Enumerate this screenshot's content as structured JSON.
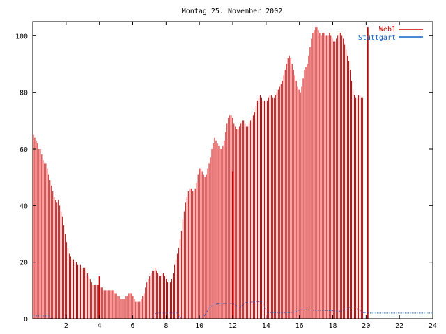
{
  "chart_data": {
    "type": "bar",
    "title": "Montag 25. November 2002",
    "xlabel": "",
    "ylabel": "",
    "xlim": [
      0,
      24
    ],
    "ylim": [
      0,
      105
    ],
    "xticks": [
      2,
      4,
      6,
      8,
      10,
      12,
      14,
      16,
      18,
      20,
      22,
      24
    ],
    "yticks": [
      0,
      20,
      40,
      60,
      80,
      100
    ],
    "grid": false,
    "legend_position": "top-right",
    "series": [
      {
        "name": "Web1",
        "color": "#d40000",
        "style": "impulses",
        "x_step_hours": 0.083,
        "values": [
          65,
          64,
          63,
          62,
          60,
          60,
          58,
          56,
          55,
          55,
          53,
          51,
          49,
          47,
          45,
          43,
          42,
          41,
          42,
          40,
          38,
          36,
          33,
          30,
          27,
          25,
          23,
          22,
          21,
          21,
          20,
          20,
          19,
          19,
          19,
          18,
          18,
          18,
          18,
          16,
          15,
          14,
          13,
          12,
          12,
          12,
          12,
          12,
          12,
          11,
          11,
          10,
          10,
          10,
          10,
          10,
          10,
          10,
          10,
          9,
          9,
          8,
          8,
          7,
          7,
          7,
          7,
          8,
          8,
          9,
          9,
          9,
          8,
          7,
          6,
          6,
          6,
          6,
          7,
          8,
          9,
          11,
          13,
          14,
          15,
          16,
          17,
          17,
          18,
          17,
          16,
          15,
          15,
          16,
          16,
          15,
          14,
          13,
          13,
          13,
          14,
          16,
          19,
          21,
          23,
          25,
          28,
          31,
          35,
          38,
          41,
          43,
          45,
          46,
          46,
          45,
          45,
          46,
          48,
          51,
          53,
          53,
          52,
          51,
          50,
          51,
          53,
          55,
          57,
          60,
          62,
          64,
          63,
          62,
          61,
          60,
          60,
          61,
          63,
          66,
          69,
          71,
          72,
          72,
          71,
          69,
          68,
          67,
          67,
          68,
          69,
          70,
          70,
          69,
          68,
          68,
          69,
          70,
          71,
          72,
          73,
          75,
          77,
          78,
          79,
          78,
          77,
          77,
          77,
          77,
          78,
          79,
          79,
          78,
          78,
          79,
          80,
          81,
          82,
          83,
          84,
          86,
          88,
          90,
          92,
          93,
          92,
          90,
          88,
          86,
          84,
          82,
          81,
          80,
          82,
          85,
          88,
          89,
          90,
          93,
          96,
          99,
          101,
          102,
          103,
          103,
          102,
          101,
          100,
          101,
          101,
          100,
          100,
          100,
          101,
          100,
          99,
          98,
          98,
          99,
          100,
          101,
          101,
          100,
          99,
          97,
          95,
          93,
          91,
          88,
          84,
          81,
          79,
          78,
          78,
          79,
          79,
          78,
          78
        ]
      },
      {
        "name": "Stuttgart",
        "color": "#1060c8",
        "style": "lines",
        "x": [
          0,
          1,
          1.1,
          7.2,
          7.4,
          8.7,
          8.9,
          10.2,
          10.6,
          11,
          11.6,
          12,
          12.4,
          12.8,
          13.4,
          13.8,
          14,
          15,
          15.6,
          16,
          16.3,
          16.8,
          18,
          18.5,
          19,
          19.4,
          19.8,
          20.2,
          22,
          23,
          24
        ],
        "y": [
          1,
          1,
          0,
          0,
          2,
          2,
          0,
          0,
          4,
          5.2,
          5.4,
          5.4,
          3.8,
          5.8,
          6,
          6.2,
          2.2,
          2,
          2.2,
          3,
          3.2,
          3,
          2.8,
          2.6,
          4,
          3.8,
          2.2,
          2,
          2,
          2,
          2
        ]
      }
    ],
    "spikes": [
      {
        "x": 4.0,
        "value": 15
      },
      {
        "x": 12.0,
        "value": 52
      },
      {
        "x": 20.1,
        "value": 103
      }
    ]
  }
}
